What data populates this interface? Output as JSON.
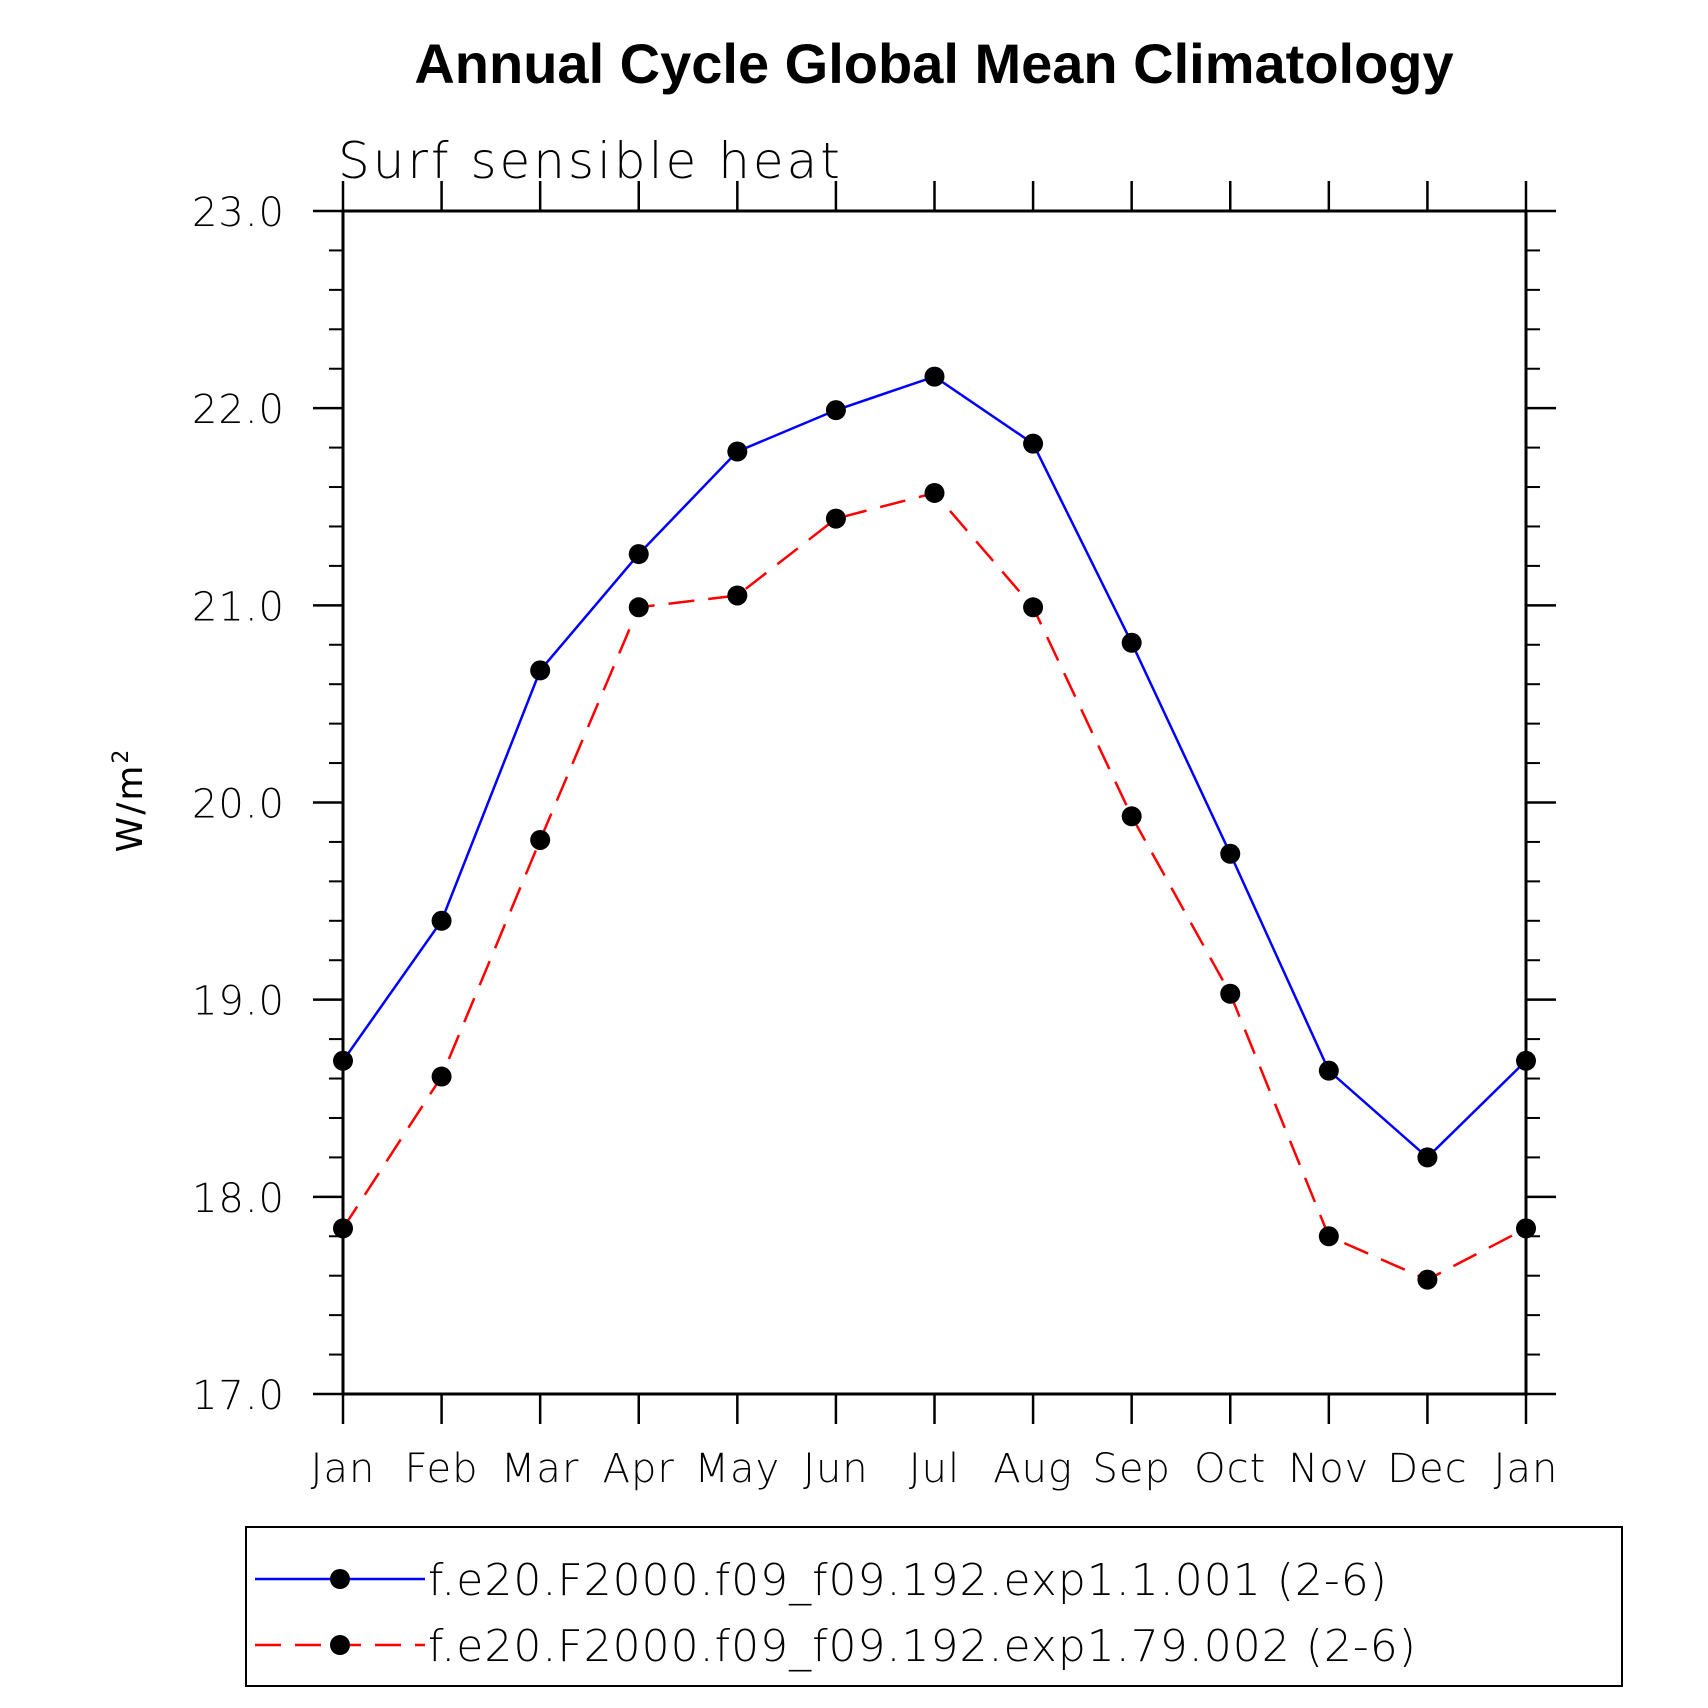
{
  "chart_data": {
    "type": "line",
    "title": "Annual Cycle Global Mean Climatology",
    "subtitle": "Surf sensible heat",
    "ylabel": "W/m",
    "ylabel_superscript": "2",
    "ylim": [
      17.0,
      23.0
    ],
    "yticks": [
      "17.0",
      "18.0",
      "19.0",
      "20.0",
      "21.0",
      "22.0",
      "23.0"
    ],
    "categories": [
      "Jan",
      "Feb",
      "Mar",
      "Apr",
      "May",
      "Jun",
      "Jul",
      "Aug",
      "Sep",
      "Oct",
      "Nov",
      "Dec",
      "Jan"
    ],
    "series": [
      {
        "name": "f.e20.F2000.f09_f09.192.exp1.1.001 (2-6)",
        "color": "#0000ff",
        "dash": "solid",
        "values": [
          18.69,
          19.4,
          20.67,
          21.26,
          21.78,
          21.99,
          22.16,
          21.82,
          20.81,
          19.74,
          18.64,
          18.2,
          18.69
        ]
      },
      {
        "name": "f.e20.F2000.f09_f09.192.exp1.79.002 (2-6)",
        "color": "#ff0000",
        "dash": "dashed",
        "values": [
          17.84,
          18.61,
          19.81,
          20.99,
          21.05,
          21.44,
          21.57,
          20.99,
          19.93,
          19.03,
          17.8,
          17.58,
          17.84
        ]
      }
    ],
    "marker": "filled-circle",
    "marker_color": "#000000",
    "legend_placement": "bottom"
  }
}
